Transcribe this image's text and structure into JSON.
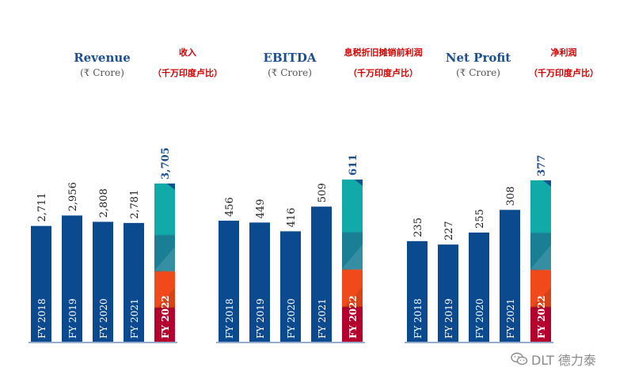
{
  "colors": {
    "bar": "#0b4a8f",
    "axis": "#2a5a9a",
    "title": "#1d4f91",
    "chinese": "#d40000",
    "highlight_top": "#12aaa8",
    "highlight_mid": "#1a7f95",
    "highlight_low": "#f04a1a",
    "highlight_bottom": "#b4002d"
  },
  "watermark": {
    "text": "DLT 德力泰",
    "icon": "wechat-icon"
  },
  "chart_data": [
    {
      "type": "bar",
      "title": "Revenue",
      "unit": "(₹ Crore)",
      "title_cn": "收入",
      "unit_cn": "（千万印度卢比）",
      "categories": [
        "FY 2018",
        "FY 2019",
        "FY 2020",
        "FY 2021",
        "FY 2022"
      ],
      "values": [
        2711,
        2956,
        2808,
        2781,
        3705
      ],
      "value_labels": [
        "2,711",
        "2,956",
        "2,808",
        "2,781",
        "3,705"
      ],
      "highlight": "FY 2022"
    },
    {
      "type": "bar",
      "title": "EBITDA",
      "unit": "(₹ Crore)",
      "title_cn": "息税折旧摊销前利润",
      "unit_cn": "（千万印度卢比）",
      "categories": [
        "FY 2018",
        "FY 2019",
        "FY 2020",
        "FY 2021",
        "FY 2022"
      ],
      "values": [
        456,
        449,
        416,
        509,
        611
      ],
      "value_labels": [
        "456",
        "449",
        "416",
        "509",
        "611"
      ],
      "highlight": "FY 2022"
    },
    {
      "type": "bar",
      "title": "Net Profit",
      "unit": "(₹ Crore)",
      "title_cn": "净利润",
      "unit_cn": "（千万印度卢比）",
      "categories": [
        "FY 2018",
        "FY 2019",
        "FY 2020",
        "FY 2021",
        "FY 2022"
      ],
      "values": [
        235,
        227,
        255,
        308,
        377
      ],
      "value_labels": [
        "235",
        "227",
        "255",
        "308",
        "377"
      ],
      "highlight": "FY 2022"
    }
  ]
}
